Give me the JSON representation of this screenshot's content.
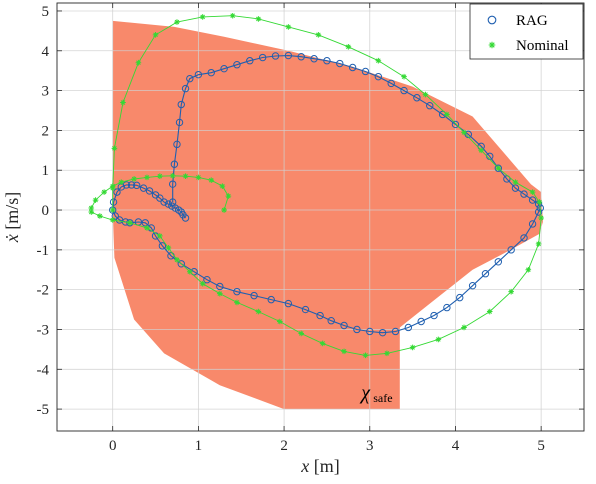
{
  "chart_data": {
    "type": "scatter",
    "xlabel_var": "x",
    "xlabel_unit": "[m]",
    "ylabel_var": "ẋ",
    "ylabel_unit": "[m/s]",
    "xlim": [
      -0.65,
      5.5
    ],
    "ylim": [
      -5.55,
      5.2
    ],
    "xticks": [
      0,
      1,
      2,
      3,
      4,
      5
    ],
    "yticks": [
      5,
      4,
      3,
      2,
      1,
      0,
      -1,
      -2,
      -3,
      -4,
      -5
    ],
    "grid": true,
    "legend_position": "top-right",
    "annotation": {
      "main": "χ",
      "sub": "safe",
      "x": 2.9,
      "y": -4.75
    },
    "safe_set": {
      "color": "#f8896b",
      "polygon": [
        [
          0.0,
          4.75
        ],
        [
          0.72,
          4.6
        ],
        [
          1.3,
          4.35
        ],
        [
          2.05,
          4.0
        ],
        [
          2.8,
          3.6
        ],
        [
          3.5,
          3.1
        ],
        [
          4.2,
          2.35
        ],
        [
          4.88,
          0.65
        ],
        [
          5.0,
          0.45
        ],
        [
          5.02,
          -0.3
        ],
        [
          4.98,
          -0.6
        ],
        [
          4.6,
          -1.05
        ],
        [
          4.2,
          -1.5
        ],
        [
          3.7,
          -2.35
        ],
        [
          3.35,
          -2.95
        ],
        [
          3.35,
          -5.0
        ],
        [
          2.0,
          -5.0
        ],
        [
          1.25,
          -4.4
        ],
        [
          0.6,
          -3.6
        ],
        [
          0.25,
          -2.75
        ],
        [
          0.02,
          -1.2
        ],
        [
          0.0,
          0.0
        ]
      ]
    },
    "series": [
      {
        "name": "RAG",
        "marker": "o",
        "color": "#1f5fb0",
        "points": [
          [
            0.85,
            -0.2
          ],
          [
            0.82,
            -0.12
          ],
          [
            0.8,
            -0.05
          ],
          [
            0.77,
            0.0
          ],
          [
            0.73,
            0.05
          ],
          [
            0.69,
            0.1
          ],
          [
            0.65,
            0.15
          ],
          [
            0.6,
            0.2
          ],
          [
            0.55,
            0.3
          ],
          [
            0.5,
            0.38
          ],
          [
            0.43,
            0.48
          ],
          [
            0.36,
            0.55
          ],
          [
            0.28,
            0.62
          ],
          [
            0.22,
            0.63
          ],
          [
            0.16,
            0.63
          ],
          [
            0.1,
            0.58
          ],
          [
            0.05,
            0.45
          ],
          [
            0.01,
            0.2
          ],
          [
            0.0,
            0.0
          ],
          [
            0.03,
            -0.15
          ],
          [
            0.08,
            -0.25
          ],
          [
            0.15,
            -0.3
          ],
          [
            0.2,
            -0.32
          ],
          [
            0.3,
            -0.3
          ],
          [
            0.38,
            -0.32
          ],
          [
            0.45,
            -0.45
          ],
          [
            0.5,
            -0.65
          ],
          [
            0.58,
            -0.9
          ],
          [
            0.68,
            -1.15
          ],
          [
            0.8,
            -1.35
          ],
          [
            0.95,
            -1.55
          ],
          [
            1.1,
            -1.75
          ],
          [
            1.25,
            -1.92
          ],
          [
            1.45,
            -2.05
          ],
          [
            1.65,
            -2.15
          ],
          [
            1.85,
            -2.25
          ],
          [
            2.05,
            -2.35
          ],
          [
            2.25,
            -2.5
          ],
          [
            2.42,
            -2.65
          ],
          [
            2.55,
            -2.78
          ],
          [
            2.7,
            -2.9
          ],
          [
            2.85,
            -3.0
          ],
          [
            3.0,
            -3.05
          ],
          [
            3.15,
            -3.08
          ],
          [
            3.3,
            -3.05
          ],
          [
            3.45,
            -2.95
          ],
          [
            3.6,
            -2.8
          ],
          [
            3.75,
            -2.65
          ],
          [
            3.9,
            -2.45
          ],
          [
            4.05,
            -2.2
          ],
          [
            4.2,
            -1.9
          ],
          [
            4.35,
            -1.6
          ],
          [
            4.5,
            -1.3
          ],
          [
            4.65,
            -1.0
          ],
          [
            4.8,
            -0.7
          ],
          [
            4.9,
            -0.35
          ],
          [
            4.97,
            -0.05
          ],
          [
            4.99,
            0.05
          ],
          [
            4.97,
            0.15
          ],
          [
            4.9,
            0.25
          ],
          [
            4.8,
            0.4
          ],
          [
            4.7,
            0.55
          ],
          [
            4.6,
            0.78
          ],
          [
            4.5,
            1.05
          ],
          [
            4.4,
            1.35
          ],
          [
            4.3,
            1.6
          ],
          [
            4.15,
            1.9
          ],
          [
            4.0,
            2.15
          ],
          [
            3.85,
            2.4
          ],
          [
            3.7,
            2.62
          ],
          [
            3.55,
            2.82
          ],
          [
            3.4,
            3.0
          ],
          [
            3.25,
            3.18
          ],
          [
            3.1,
            3.35
          ],
          [
            2.95,
            3.48
          ],
          [
            2.8,
            3.58
          ],
          [
            2.65,
            3.68
          ],
          [
            2.5,
            3.75
          ],
          [
            2.35,
            3.8
          ],
          [
            2.2,
            3.85
          ],
          [
            2.05,
            3.88
          ],
          [
            1.9,
            3.87
          ],
          [
            1.75,
            3.83
          ],
          [
            1.6,
            3.75
          ],
          [
            1.45,
            3.65
          ],
          [
            1.3,
            3.55
          ],
          [
            1.15,
            3.45
          ],
          [
            1.0,
            3.4
          ],
          [
            0.9,
            3.3
          ],
          [
            0.85,
            3.05
          ],
          [
            0.8,
            2.65
          ],
          [
            0.78,
            2.2
          ],
          [
            0.75,
            1.65
          ],
          [
            0.72,
            1.15
          ],
          [
            0.7,
            0.65
          ],
          [
            0.7,
            0.2
          ]
        ]
      },
      {
        "name": "Nominal",
        "marker": "*",
        "color": "#34d934",
        "points": [
          [
            1.3,
            0.0
          ],
          [
            1.35,
            0.35
          ],
          [
            1.28,
            0.6
          ],
          [
            1.15,
            0.75
          ],
          [
            1.0,
            0.82
          ],
          [
            0.85,
            0.85
          ],
          [
            0.7,
            0.86
          ],
          [
            0.55,
            0.85
          ],
          [
            0.4,
            0.82
          ],
          [
            0.25,
            0.78
          ],
          [
            0.1,
            0.7
          ],
          [
            0.0,
            0.6
          ],
          [
            -0.1,
            0.45
          ],
          [
            -0.2,
            0.25
          ],
          [
            -0.25,
            0.05
          ],
          [
            -0.25,
            -0.05
          ],
          [
            -0.15,
            -0.15
          ],
          [
            0.0,
            -0.25
          ],
          [
            0.2,
            -0.32
          ],
          [
            0.4,
            -0.45
          ],
          [
            0.55,
            -0.65
          ],
          [
            0.65,
            -0.95
          ],
          [
            0.75,
            -1.25
          ],
          [
            0.9,
            -1.55
          ],
          [
            1.05,
            -1.85
          ],
          [
            1.25,
            -2.1
          ],
          [
            1.45,
            -2.32
          ],
          [
            1.7,
            -2.55
          ],
          [
            1.95,
            -2.8
          ],
          [
            2.2,
            -3.1
          ],
          [
            2.45,
            -3.35
          ],
          [
            2.7,
            -3.55
          ],
          [
            2.95,
            -3.65
          ],
          [
            3.2,
            -3.6
          ],
          [
            3.5,
            -3.45
          ],
          [
            3.8,
            -3.25
          ],
          [
            4.1,
            -2.95
          ],
          [
            4.4,
            -2.55
          ],
          [
            4.65,
            -2.05
          ],
          [
            4.85,
            -1.5
          ],
          [
            4.97,
            -0.85
          ],
          [
            5.0,
            -0.2
          ],
          [
            4.98,
            0.2
          ],
          [
            4.9,
            0.45
          ],
          [
            4.7,
            0.7
          ],
          [
            4.5,
            1.05
          ],
          [
            4.3,
            1.5
          ],
          [
            4.1,
            1.95
          ],
          [
            3.9,
            2.4
          ],
          [
            3.65,
            2.9
          ],
          [
            3.4,
            3.35
          ],
          [
            3.1,
            3.75
          ],
          [
            2.75,
            4.1
          ],
          [
            2.4,
            4.4
          ],
          [
            2.05,
            4.6
          ],
          [
            1.7,
            4.8
          ],
          [
            1.4,
            4.88
          ],
          [
            1.05,
            4.85
          ],
          [
            0.75,
            4.72
          ],
          [
            0.5,
            4.4
          ],
          [
            0.3,
            3.7
          ],
          [
            0.12,
            2.7
          ],
          [
            0.02,
            1.55
          ],
          [
            0.0,
            0.55
          ],
          [
            0.0,
            0.0
          ]
        ]
      }
    ]
  }
}
